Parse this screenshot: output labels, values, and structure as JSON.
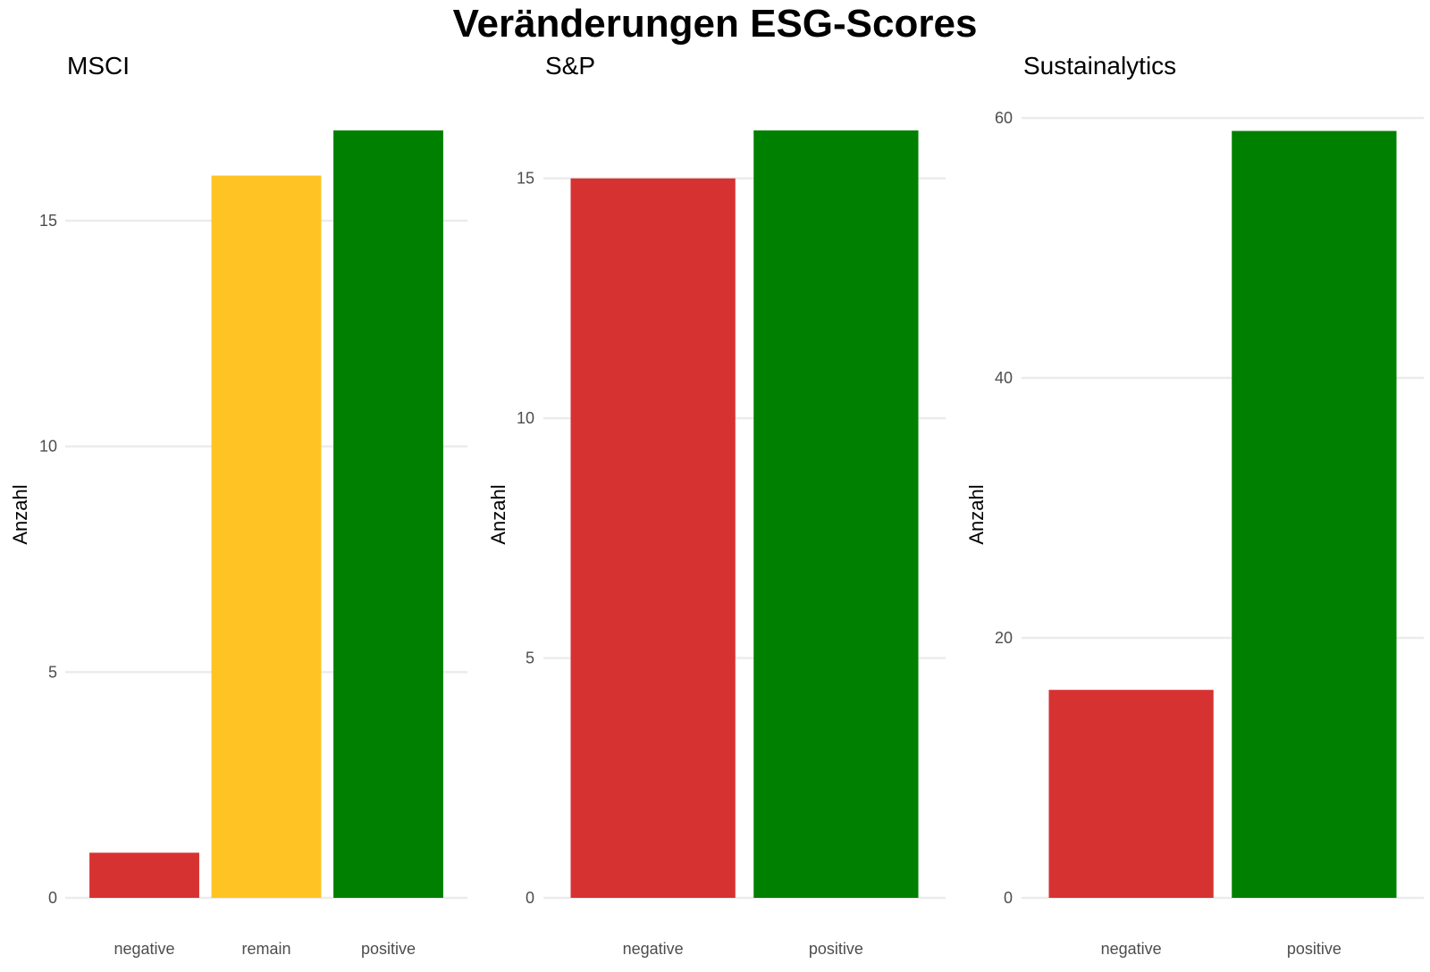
{
  "title": "Veränderungen ESG-Scores",
  "colors": {
    "negative": "#D73232",
    "remain": "#FFC423",
    "positive": "#008000",
    "grid": "#EBEBEB",
    "tick_text": "#4D4D4D"
  },
  "chart_data": [
    {
      "type": "bar",
      "subtitle": "MSCI",
      "ylabel": "Anzahl",
      "xlabel": "",
      "categories": [
        "negative",
        "remain",
        "positive"
      ],
      "values": [
        1,
        16,
        17
      ],
      "ylim": [
        0,
        17
      ],
      "yticks": [
        0,
        5,
        10,
        15
      ],
      "grid": true,
      "legend": "none"
    },
    {
      "type": "bar",
      "subtitle": "S&P",
      "ylabel": "Anzahl",
      "xlabel": "",
      "categories": [
        "negative",
        "positive"
      ],
      "values": [
        15,
        16
      ],
      "ylim": [
        0,
        16
      ],
      "yticks": [
        0,
        5,
        10,
        15
      ],
      "grid": true,
      "legend": "none"
    },
    {
      "type": "bar",
      "subtitle": "Sustainalytics",
      "ylabel": "Anzahl",
      "xlabel": "",
      "categories": [
        "negative",
        "positive"
      ],
      "values": [
        16,
        59
      ],
      "ylim": [
        0,
        60
      ],
      "yticks": [
        0,
        20,
        40,
        60
      ],
      "grid": true,
      "legend": "none"
    }
  ]
}
